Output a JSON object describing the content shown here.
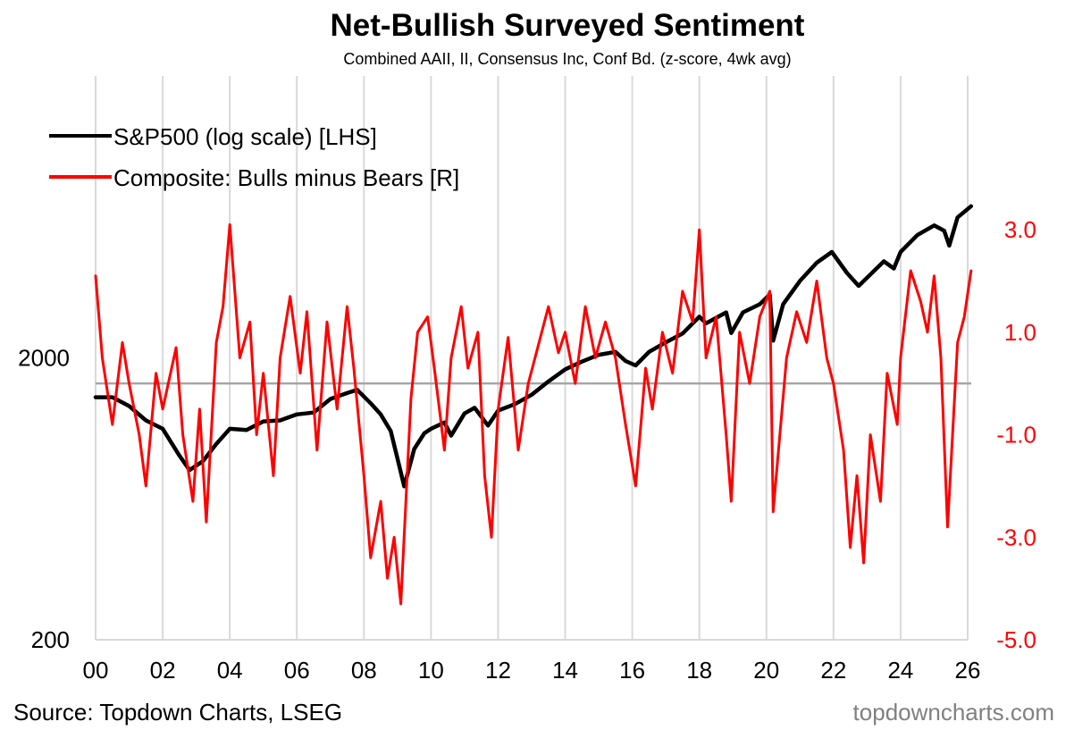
{
  "chart_data": {
    "type": "line",
    "title": "Net-Bullish Surveyed Sentiment",
    "subtitle": "Combined AAII, II, Consensus Inc, Conf Bd. (z-score, 4wk avg)",
    "x_axis": {
      "ticks": [
        "00",
        "02",
        "04",
        "06",
        "08",
        "10",
        "12",
        "14",
        "16",
        "18",
        "20",
        "22",
        "24",
        "26"
      ],
      "range": [
        2000,
        2026
      ]
    },
    "left_axis": {
      "scale": "log",
      "range": [
        200,
        20000
      ],
      "tick_labels": [
        "2000",
        "200"
      ],
      "tick_values": [
        2000,
        200
      ]
    },
    "right_axis": {
      "range": [
        -5.0,
        6.0
      ],
      "tick_labels": [
        "3.0",
        "1.0",
        "-1.0",
        "-3.0",
        "-5.0"
      ],
      "tick_values": [
        3,
        1,
        -1,
        -3,
        -5
      ],
      "zero_line": 0
    },
    "legend": {
      "position": "top-left",
      "entries": [
        {
          "label": "S&P500 (log scale) [LHS]",
          "color": "#000000"
        },
        {
          "label": "Composite: Bulls minus Bears [R]",
          "color": "#ff0000"
        }
      ]
    },
    "series": [
      {
        "name": "S&P500 (log scale) [LHS]",
        "axis": "left",
        "color": "#000000",
        "points": [
          [
            2000.0,
            1450
          ],
          [
            2000.5,
            1450
          ],
          [
            2001.0,
            1350
          ],
          [
            2001.5,
            1200
          ],
          [
            2002.0,
            1120
          ],
          [
            2002.5,
            900
          ],
          [
            2002.8,
            800
          ],
          [
            2003.2,
            860
          ],
          [
            2003.6,
            990
          ],
          [
            2004.0,
            1120
          ],
          [
            2004.5,
            1110
          ],
          [
            2005.0,
            1190
          ],
          [
            2005.5,
            1200
          ],
          [
            2006.0,
            1260
          ],
          [
            2006.5,
            1280
          ],
          [
            2007.0,
            1430
          ],
          [
            2007.5,
            1500
          ],
          [
            2007.8,
            1540
          ],
          [
            2008.2,
            1380
          ],
          [
            2008.5,
            1260
          ],
          [
            2008.8,
            1100
          ],
          [
            2009.0,
            880
          ],
          [
            2009.2,
            700
          ],
          [
            2009.5,
            950
          ],
          [
            2009.8,
            1080
          ],
          [
            2010.0,
            1120
          ],
          [
            2010.4,
            1180
          ],
          [
            2010.6,
            1060
          ],
          [
            2011.0,
            1270
          ],
          [
            2011.3,
            1330
          ],
          [
            2011.7,
            1150
          ],
          [
            2012.0,
            1300
          ],
          [
            2012.5,
            1370
          ],
          [
            2013.0,
            1480
          ],
          [
            2013.5,
            1650
          ],
          [
            2014.0,
            1820
          ],
          [
            2014.5,
            1940
          ],
          [
            2015.0,
            2050
          ],
          [
            2015.5,
            2100
          ],
          [
            2015.8,
            1950
          ],
          [
            2016.1,
            1880
          ],
          [
            2016.5,
            2100
          ],
          [
            2017.0,
            2270
          ],
          [
            2017.5,
            2440
          ],
          [
            2018.0,
            2800
          ],
          [
            2018.2,
            2650
          ],
          [
            2018.8,
            2900
          ],
          [
            2018.95,
            2450
          ],
          [
            2019.3,
            2900
          ],
          [
            2019.8,
            3100
          ],
          [
            2020.1,
            3350
          ],
          [
            2020.2,
            2300
          ],
          [
            2020.5,
            3100
          ],
          [
            2021.0,
            3750
          ],
          [
            2021.5,
            4350
          ],
          [
            2021.95,
            4750
          ],
          [
            2022.4,
            4000
          ],
          [
            2022.75,
            3600
          ],
          [
            2023.0,
            3850
          ],
          [
            2023.5,
            4400
          ],
          [
            2023.8,
            4150
          ],
          [
            2024.0,
            4750
          ],
          [
            2024.5,
            5450
          ],
          [
            2025.0,
            5900
          ],
          [
            2025.3,
            5650
          ],
          [
            2025.45,
            5000
          ],
          [
            2025.7,
            6300
          ],
          [
            2026.1,
            6900
          ]
        ]
      },
      {
        "name": "Composite: Bulls minus Bears [R]",
        "axis": "right",
        "color": "#ff0000",
        "points": [
          [
            2000.0,
            2.1
          ],
          [
            2000.2,
            0.5
          ],
          [
            2000.5,
            -0.8
          ],
          [
            2000.8,
            0.8
          ],
          [
            2001.0,
            0.0
          ],
          [
            2001.3,
            -1.0
          ],
          [
            2001.5,
            -2.0
          ],
          [
            2001.8,
            0.2
          ],
          [
            2002.0,
            -0.5
          ],
          [
            2002.4,
            0.7
          ],
          [
            2002.6,
            -1.0
          ],
          [
            2002.9,
            -2.3
          ],
          [
            2003.1,
            -0.5
          ],
          [
            2003.3,
            -2.7
          ],
          [
            2003.6,
            0.8
          ],
          [
            2003.8,
            1.5
          ],
          [
            2004.0,
            3.1
          ],
          [
            2004.3,
            0.5
          ],
          [
            2004.6,
            1.2
          ],
          [
            2004.8,
            -1.0
          ],
          [
            2005.0,
            0.2
          ],
          [
            2005.3,
            -1.8
          ],
          [
            2005.5,
            0.5
          ],
          [
            2005.8,
            1.7
          ],
          [
            2006.1,
            0.2
          ],
          [
            2006.3,
            1.4
          ],
          [
            2006.6,
            -1.3
          ],
          [
            2006.9,
            1.2
          ],
          [
            2007.2,
            -0.5
          ],
          [
            2007.5,
            1.5
          ],
          [
            2007.7,
            0.3
          ],
          [
            2008.0,
            -1.8
          ],
          [
            2008.2,
            -3.4
          ],
          [
            2008.5,
            -2.3
          ],
          [
            2008.7,
            -3.8
          ],
          [
            2008.9,
            -3.0
          ],
          [
            2009.1,
            -4.3
          ],
          [
            2009.4,
            -0.3
          ],
          [
            2009.6,
            1.0
          ],
          [
            2009.9,
            1.3
          ],
          [
            2010.1,
            0.3
          ],
          [
            2010.4,
            -1.3
          ],
          [
            2010.6,
            0.5
          ],
          [
            2010.9,
            1.5
          ],
          [
            2011.1,
            0.3
          ],
          [
            2011.4,
            1.0
          ],
          [
            2011.6,
            -1.8
          ],
          [
            2011.8,
            -3.0
          ],
          [
            2012.0,
            -0.5
          ],
          [
            2012.3,
            0.9
          ],
          [
            2012.6,
            -1.3
          ],
          [
            2012.9,
            0.0
          ],
          [
            2013.1,
            0.5
          ],
          [
            2013.5,
            1.5
          ],
          [
            2013.8,
            0.6
          ],
          [
            2014.0,
            1.0
          ],
          [
            2014.3,
            0.0
          ],
          [
            2014.6,
            1.5
          ],
          [
            2014.9,
            0.5
          ],
          [
            2015.2,
            1.2
          ],
          [
            2015.5,
            0.5
          ],
          [
            2015.8,
            -0.8
          ],
          [
            2016.1,
            -2.0
          ],
          [
            2016.4,
            0.3
          ],
          [
            2016.6,
            -0.5
          ],
          [
            2016.9,
            1.0
          ],
          [
            2017.2,
            0.2
          ],
          [
            2017.5,
            1.8
          ],
          [
            2017.8,
            1.2
          ],
          [
            2018.0,
            3.0
          ],
          [
            2018.2,
            0.5
          ],
          [
            2018.5,
            1.3
          ],
          [
            2018.8,
            -1.0
          ],
          [
            2018.95,
            -2.3
          ],
          [
            2019.2,
            1.0
          ],
          [
            2019.5,
            0.0
          ],
          [
            2019.8,
            1.3
          ],
          [
            2020.1,
            1.8
          ],
          [
            2020.2,
            -2.5
          ],
          [
            2020.4,
            -1.0
          ],
          [
            2020.6,
            0.5
          ],
          [
            2020.9,
            1.4
          ],
          [
            2021.2,
            0.8
          ],
          [
            2021.5,
            2.0
          ],
          [
            2021.8,
            0.5
          ],
          [
            2022.0,
            0.0
          ],
          [
            2022.3,
            -1.3
          ],
          [
            2022.5,
            -3.2
          ],
          [
            2022.7,
            -1.8
          ],
          [
            2022.9,
            -3.5
          ],
          [
            2023.1,
            -1.0
          ],
          [
            2023.4,
            -2.3
          ],
          [
            2023.6,
            0.2
          ],
          [
            2023.9,
            -0.8
          ],
          [
            2024.0,
            0.5
          ],
          [
            2024.3,
            2.2
          ],
          [
            2024.6,
            1.6
          ],
          [
            2024.8,
            1.0
          ],
          [
            2025.0,
            2.1
          ],
          [
            2025.2,
            0.5
          ],
          [
            2025.4,
            -2.8
          ],
          [
            2025.55,
            -1.0
          ],
          [
            2025.7,
            0.8
          ],
          [
            2025.9,
            1.3
          ],
          [
            2026.1,
            2.2
          ]
        ]
      }
    ]
  },
  "footer": {
    "source": "Source: Topdown Charts, LSEG",
    "watermark": "topdowncharts.com"
  }
}
